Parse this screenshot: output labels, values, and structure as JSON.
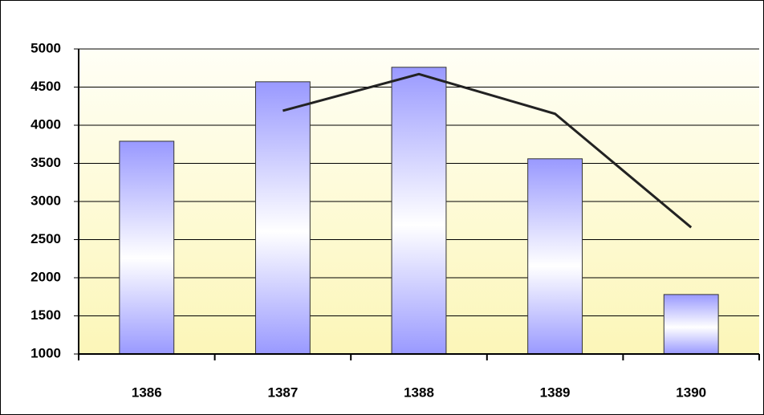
{
  "chart_data": {
    "type": "combo",
    "categories": [
      "1386",
      "1387",
      "1388",
      "1389",
      "1390"
    ],
    "series": [
      {
        "type": "bar",
        "color": "#9999ff",
        "values": [
          3790,
          4570,
          4760,
          3560,
          1780
        ]
      },
      {
        "type": "line",
        "color": "#222222",
        "values": [
          null,
          4190,
          4670,
          4150,
          2660
        ]
      }
    ],
    "ylim": [
      1000,
      5000
    ],
    "yticks": [
      1000,
      1500,
      2000,
      2500,
      3000,
      3500,
      4000,
      4500,
      5000
    ],
    "grid": true
  }
}
